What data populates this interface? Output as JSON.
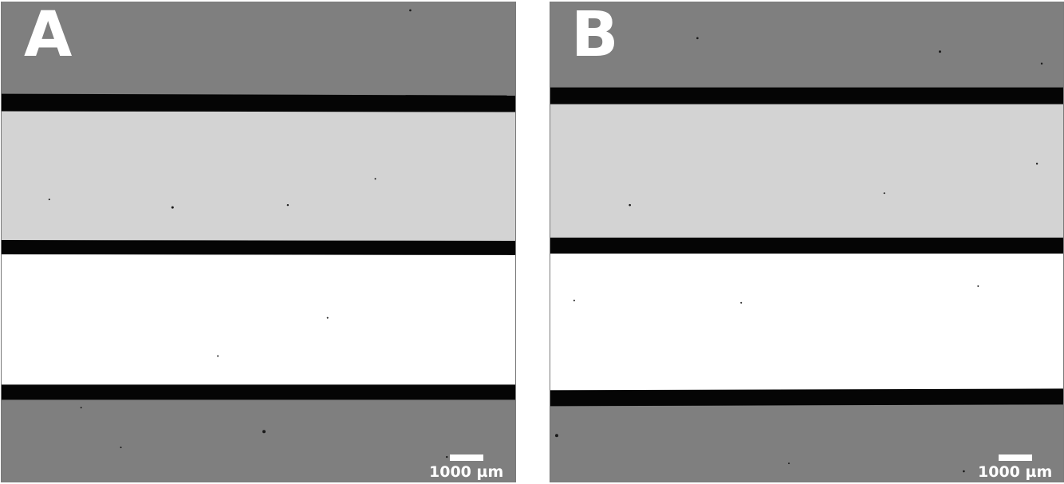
{
  "panels": [
    {
      "label": "A",
      "scale_text": "1000 µm"
    },
    {
      "label": "B",
      "scale_text": "1000 µm"
    }
  ],
  "colors": {
    "outer_region": "#7f7f7f",
    "middle_band": "#d3d3d3",
    "bright_band": "#ffffff",
    "divider": "#050505",
    "label_text": "#ffffff"
  }
}
